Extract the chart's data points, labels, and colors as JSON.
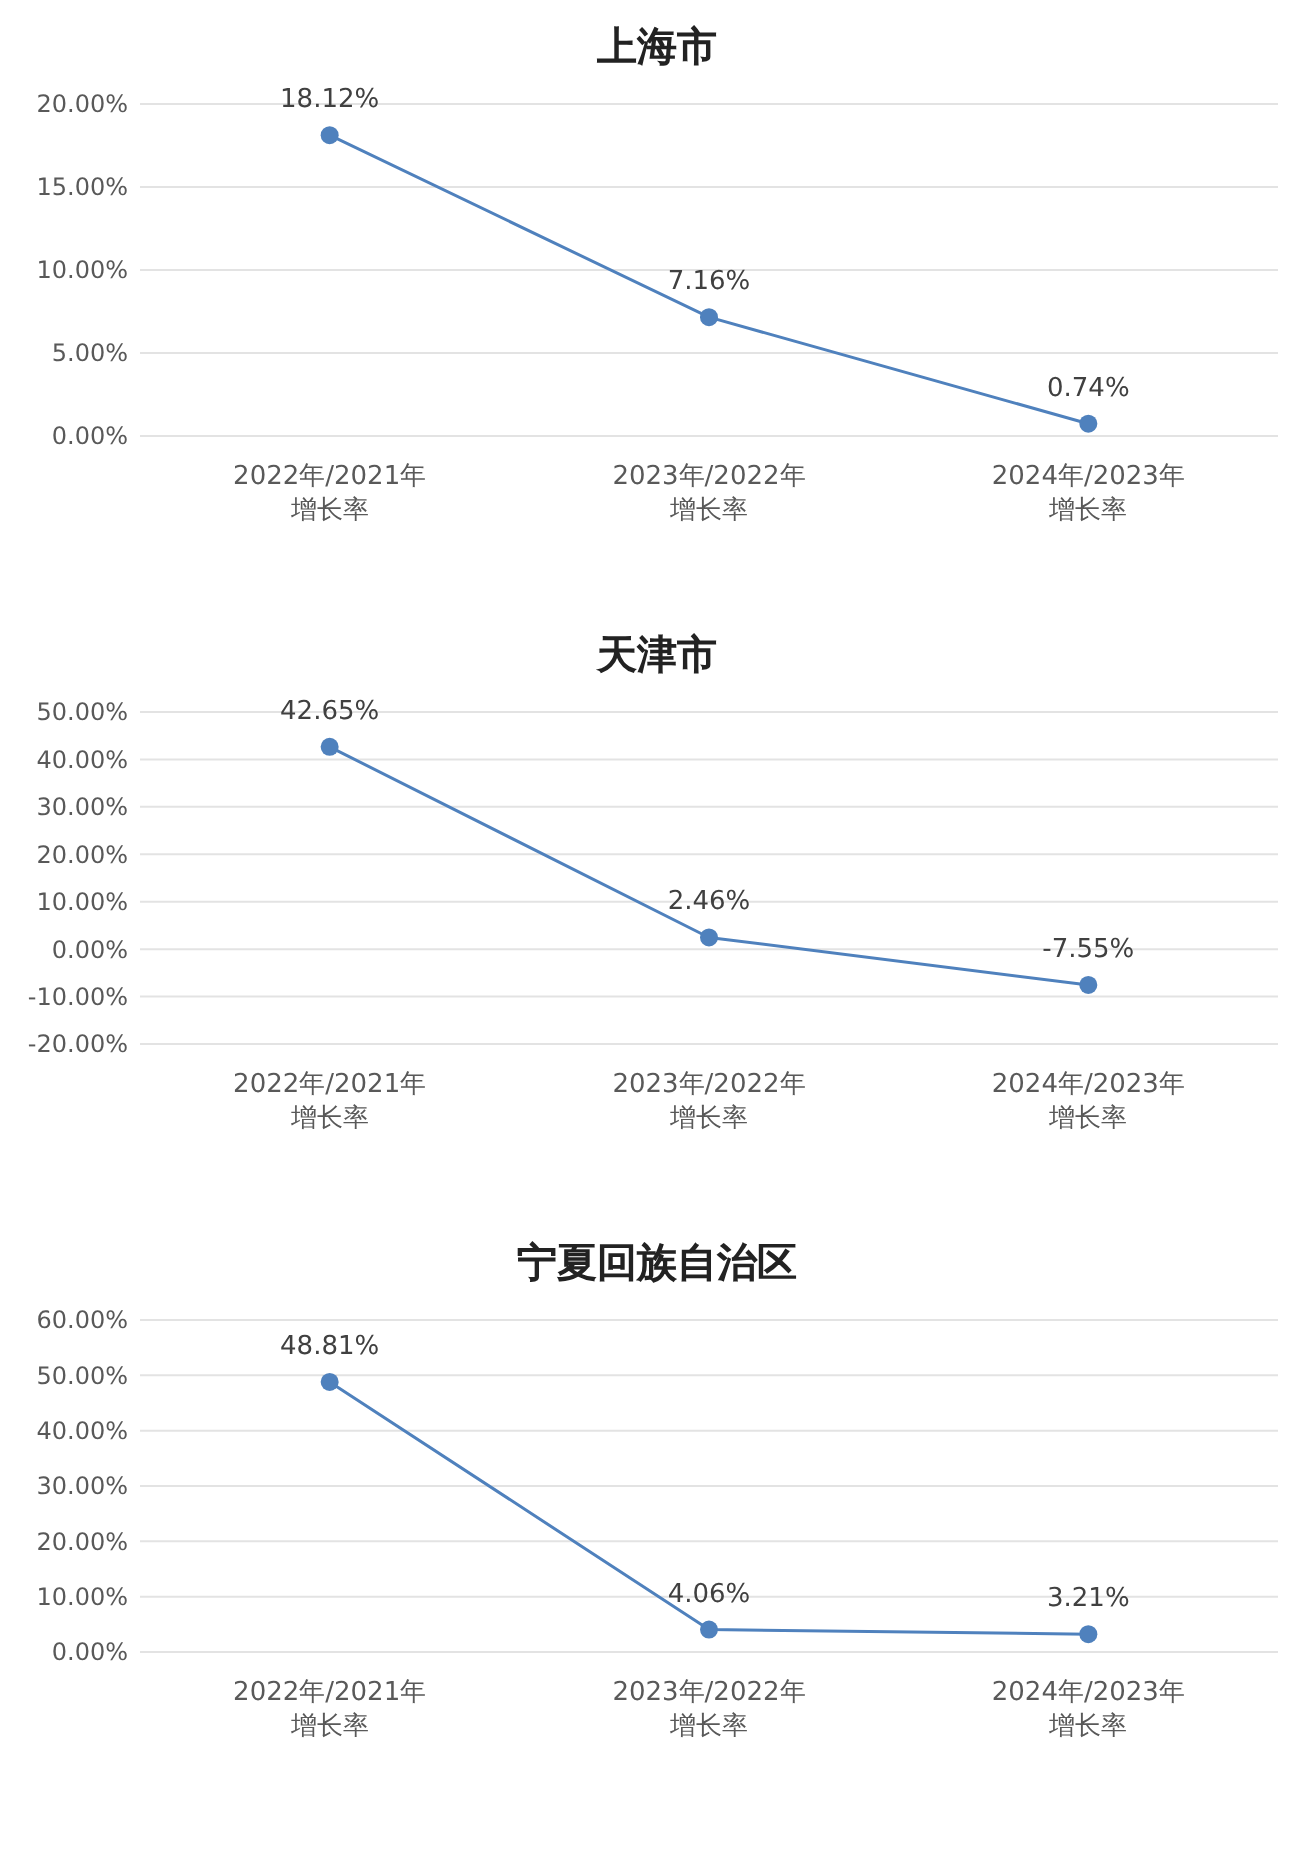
{
  "chart_data": [
    {
      "type": "line",
      "title": "上海市",
      "categories": [
        "2022年/2021年增长率",
        "2023年/2022年增长率",
        "2024年/2023年增长率"
      ],
      "series": [
        {
          "color": "#4f81bd",
          "values": [
            18.12,
            7.16,
            0.74
          ],
          "value_labels": [
            "18.12%",
            "7.16%",
            "0.74%"
          ]
        }
      ],
      "ylim": [
        0,
        20
      ],
      "yticks": [
        {
          "value": 0,
          "label": "0.00%"
        },
        {
          "value": 5,
          "label": "5.00%"
        },
        {
          "value": 10,
          "label": "10.00%"
        },
        {
          "value": 15,
          "label": "15.00%"
        },
        {
          "value": 20,
          "label": "20.00%"
        }
      ],
      "grid": "y",
      "marker": "circle"
    },
    {
      "type": "line",
      "title": "天津市",
      "categories": [
        "2022年/2021年增长率",
        "2023年/2022年增长率",
        "2024年/2023年增长率"
      ],
      "series": [
        {
          "color": "#4f81bd",
          "values": [
            42.65,
            2.46,
            -7.55
          ],
          "value_labels": [
            "42.65%",
            "2.46%",
            "-7.55%"
          ]
        }
      ],
      "ylim": [
        -20,
        50
      ],
      "yticks": [
        {
          "value": -20,
          "label": "-20.00%"
        },
        {
          "value": -10,
          "label": "-10.00%"
        },
        {
          "value": 0,
          "label": "0.00%"
        },
        {
          "value": 10,
          "label": "10.00%"
        },
        {
          "value": 20,
          "label": "20.00%"
        },
        {
          "value": 30,
          "label": "30.00%"
        },
        {
          "value": 40,
          "label": "40.00%"
        },
        {
          "value": 50,
          "label": "50.00%"
        }
      ],
      "grid": "y",
      "marker": "circle"
    },
    {
      "type": "line",
      "title": "宁夏回族自治区",
      "categories": [
        "2022年/2021年增长率",
        "2023年/2022年增长率",
        "2024年/2023年增长率"
      ],
      "series": [
        {
          "color": "#4f81bd",
          "values": [
            48.81,
            4.06,
            3.21
          ],
          "value_labels": [
            "48.81%",
            "4.06%",
            "3.21%"
          ]
        }
      ],
      "ylim": [
        0,
        60
      ],
      "yticks": [
        {
          "value": 0,
          "label": "0.00%"
        },
        {
          "value": 10,
          "label": "10.00%"
        },
        {
          "value": 20,
          "label": "20.00%"
        },
        {
          "value": 30,
          "label": "30.00%"
        },
        {
          "value": 40,
          "label": "40.00%"
        },
        {
          "value": 50,
          "label": "50.00%"
        },
        {
          "value": 60,
          "label": "60.00%"
        }
      ],
      "grid": "y",
      "marker": "circle"
    }
  ]
}
